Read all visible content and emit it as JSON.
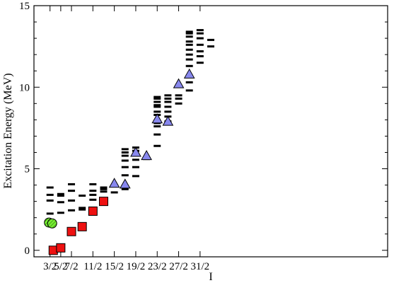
{
  "chart_data": {
    "type": "scatter",
    "title": "",
    "xlabel": "I",
    "ylabel": "Excitation Energy (MeV)",
    "xlim": [
      0,
      33
    ],
    "ylim": [
      -0.4,
      15
    ],
    "x_ticks": [
      {
        "value": 3,
        "label": "3/2"
      },
      {
        "value": 5,
        "label": "5/2"
      },
      {
        "value": 7,
        "label": "7/2"
      },
      {
        "value": 11,
        "label": "11/2"
      },
      {
        "value": 15,
        "label": "15/2"
      },
      {
        "value": 19,
        "label": "19/2"
      },
      {
        "value": 23,
        "label": "23/2"
      },
      {
        "value": 27,
        "label": "27/2"
      },
      {
        "value": 31,
        "label": "31/2"
      }
    ],
    "y_ticks": [
      0,
      5,
      10,
      15
    ],
    "grid": false,
    "series": [
      {
        "marker": "dash",
        "color": "#000000",
        "levels": [
          {
            "x": 1.5,
            "y": [
              2.25,
              3.05,
              3.4,
              3.85
            ]
          },
          {
            "x": 2.5,
            "y": [
              2.3,
              2.95,
              3.35,
              3.45
            ]
          },
          {
            "x": 3.5,
            "y": [
              2.45,
              3.05,
              3.65,
              4.05
            ]
          },
          {
            "x": 4.5,
            "y": [
              2.5,
              2.6,
              3.35
            ]
          },
          {
            "x": 5.5,
            "y": [
              3.1,
              3.4,
              3.65,
              4.05
            ]
          },
          {
            "x": 6.5,
            "y": [
              3.6,
              3.75,
              3.85
            ]
          },
          {
            "x": 7.5,
            "y": [
              3.55
            ]
          },
          {
            "x": 8.5,
            "y": [
              3.75,
              4.6,
              5.1,
              5.5,
              5.8,
              6.0,
              6.2
            ]
          },
          {
            "x": 9.5,
            "y": [
              4.55,
              5.1,
              5.55,
              5.9,
              6.1,
              6.3
            ]
          },
          {
            "x": 10.5,
            "y": [
              5.6
            ]
          },
          {
            "x": 11.5,
            "y": [
              6.4,
              7.1,
              7.6,
              7.8,
              8.3,
              8.5,
              8.8,
              8.9,
              9.1,
              9.3,
              9.4
            ]
          },
          {
            "x": 12.5,
            "y": [
              7.9,
              8.2,
              8.5,
              8.8,
              9.1,
              9.3,
              9.5
            ]
          },
          {
            "x": 13.5,
            "y": [
              9.0,
              9.3,
              9.5
            ]
          },
          {
            "x": 14.5,
            "y": [
              9.8,
              10.3,
              10.7,
              11.3,
              11.7,
              12.0,
              12.3,
              12.6,
              12.8,
              13.1,
              13.3,
              13.4
            ]
          },
          {
            "x": 15.5,
            "y": [
              11.5,
              11.9,
              12.2,
              12.6,
              13.0,
              13.3,
              13.5
            ]
          },
          {
            "x": 16.5,
            "y": [
              12.5,
              12.9
            ]
          }
        ]
      },
      {
        "marker": "hatched-circle",
        "color": "#77ee33",
        "points": [
          {
            "x": 1.4,
            "y": 1.7
          },
          {
            "x": 1.7,
            "y": 1.65
          }
        ]
      },
      {
        "marker": "square",
        "color": "#ee1111",
        "points": [
          {
            "x": 1.8,
            "y": 0.0
          },
          {
            "x": 2.5,
            "y": 0.15
          },
          {
            "x": 3.5,
            "y": 1.15
          },
          {
            "x": 4.5,
            "y": 1.45
          },
          {
            "x": 5.5,
            "y": 2.4
          },
          {
            "x": 6.5,
            "y": 3.0
          }
        ]
      },
      {
        "marker": "triangle",
        "color": "#8888ee",
        "points": [
          {
            "x": 7.5,
            "y": 4.1
          },
          {
            "x": 8.5,
            "y": 4.05
          },
          {
            "x": 9.5,
            "y": 6.0
          },
          {
            "x": 10.5,
            "y": 5.8
          },
          {
            "x": 11.5,
            "y": 8.05
          },
          {
            "x": 12.5,
            "y": 7.9
          },
          {
            "x": 13.5,
            "y": 10.2
          },
          {
            "x": 14.5,
            "y": 10.8
          }
        ]
      }
    ]
  }
}
